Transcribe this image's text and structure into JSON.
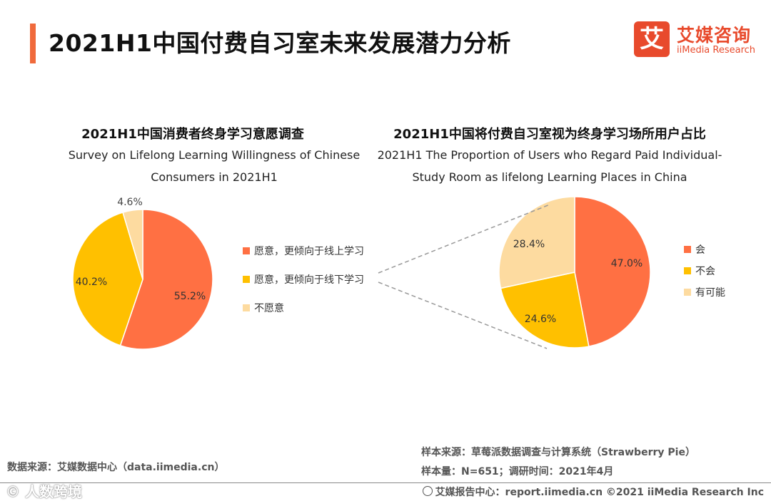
{
  "header": {
    "title": "2021H1中国付费自习室未来发展潜力分析",
    "logo_mark": "艾",
    "logo_cn": "艾媒咨询",
    "logo_en": "iiMedia Research"
  },
  "colors": {
    "accent": "#f06a3c",
    "pie_orange": "#ff7043",
    "pie_yellow": "#ffc000",
    "pie_light": "#fddba0",
    "connector": "#999999"
  },
  "chart_data": [
    {
      "type": "pie",
      "title": "2021H1中国消费者终身学习意愿调查",
      "subtitle_lines": [
        "Survey on Lifelong Learning Willingness of Chinese",
        "Consumers in 2021H1"
      ],
      "labels": [
        "愿意，更倾向于线上学习",
        "愿意，更倾向于线下学习",
        "不愿意"
      ],
      "values": [
        55.2,
        40.2,
        4.6
      ],
      "value_labels": [
        "55.2%",
        "40.2%",
        "4.6%"
      ],
      "legend_position": "right"
    },
    {
      "type": "pie",
      "title": "2021H1中国将付费自习室视为终身学习场所用户占比",
      "subtitle_lines": [
        "2021H1 The Proportion of Users who Regard Paid Individual-",
        "Study Room as lifelong Learning Places in China"
      ],
      "labels": [
        "会",
        "不会",
        "有可能"
      ],
      "values": [
        47.0,
        24.6,
        28.4
      ],
      "value_labels": [
        "47.0%",
        "24.6%",
        "28.4%"
      ],
      "legend_position": "right"
    }
  ],
  "footer": {
    "data_source": "数据来源：艾媒数据中心（data.iimedia.cn）",
    "sample_source": "样本来源：草莓派数据调查与计算系统（Strawberry Pie）",
    "sample_size": "样本量：N=651；调研时间：2021年4月",
    "report_center": "艾媒报告中心：report.iimedia.cn   ©2021  iiMedia Research  Inc",
    "watermark": "© 人数跨境"
  }
}
